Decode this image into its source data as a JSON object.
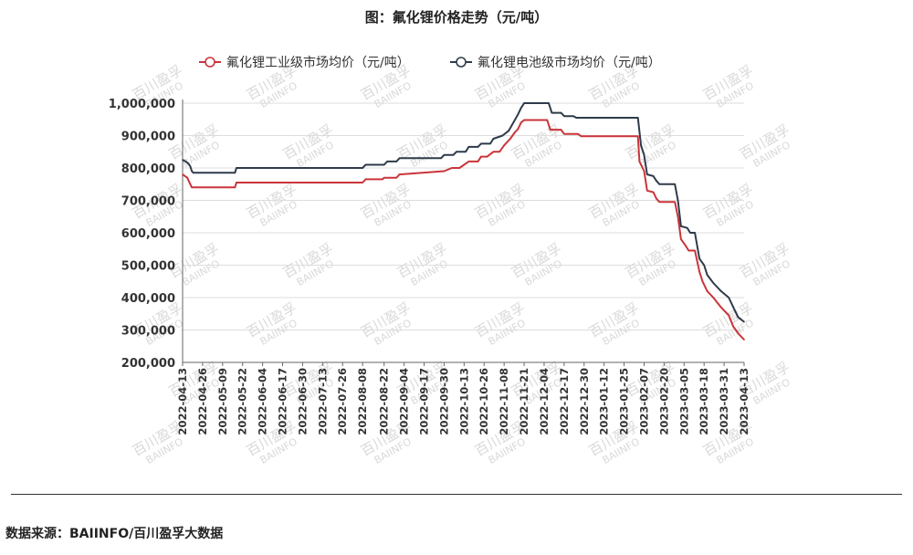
{
  "title": "图：氟化锂价格走势（元/吨）",
  "source": "数据来源：BAIINFO/百川盈孚大数据",
  "watermark": {
    "line1": "百川盈孚",
    "line2": "BAIINFO"
  },
  "colors": {
    "industrial": "#c9353a",
    "battery": "#2f3b4a",
    "axis": "#666666",
    "grid": "#dddddd"
  },
  "chart_data": {
    "type": "line",
    "legend_position": "top",
    "grid": "horizontal",
    "ylim": [
      200000,
      1000000
    ],
    "y_ticks": [
      "200,000",
      "300,000",
      "400,000",
      "500,000",
      "600,000",
      "700,000",
      "800,000",
      "900,000",
      "1,000,000"
    ],
    "y_tick_values": [
      200000,
      300000,
      400000,
      500000,
      600000,
      700000,
      800000,
      900000,
      1000000
    ],
    "x_tick_labels": [
      "2022-04-13",
      "2022-04-26",
      "2022-05-09",
      "2022-05-22",
      "2022-06-04",
      "2022-06-17",
      "2022-06-30",
      "2022-07-13",
      "2022-07-26",
      "2022-08-08",
      "2022-08-22",
      "2022-09-04",
      "2022-09-17",
      "2022-09-30",
      "2022-10-13",
      "2022-10-26",
      "2022-11-08",
      "2022-11-21",
      "2022-12-04",
      "2022-12-17",
      "2022-12-30",
      "2023-01-12",
      "2023-01-25",
      "2023-02-07",
      "2023-02-20",
      "2023-03-05",
      "2023-03-18",
      "2023-03-31",
      "2023-04-13"
    ],
    "series": [
      {
        "name": "氟化锂工业级市场均价（元/吨）",
        "points": [
          [
            "2022-04-13",
            780000
          ],
          [
            "2022-04-16",
            770000
          ],
          [
            "2022-04-18",
            750000
          ],
          [
            "2022-04-19",
            740000
          ],
          [
            "2022-05-17",
            740000
          ],
          [
            "2022-05-18",
            755000
          ],
          [
            "2022-08-08",
            755000
          ],
          [
            "2022-08-10",
            765000
          ],
          [
            "2022-08-21",
            765000
          ],
          [
            "2022-08-22",
            770000
          ],
          [
            "2022-08-30",
            770000
          ],
          [
            "2022-09-01",
            780000
          ],
          [
            "2022-09-30",
            790000
          ],
          [
            "2022-10-05",
            800000
          ],
          [
            "2022-10-10",
            800000
          ],
          [
            "2022-10-13",
            810000
          ],
          [
            "2022-10-16",
            820000
          ],
          [
            "2022-10-22",
            820000
          ],
          [
            "2022-10-24",
            835000
          ],
          [
            "2022-10-28",
            835000
          ],
          [
            "2022-11-01",
            850000
          ],
          [
            "2022-11-05",
            850000
          ],
          [
            "2022-11-08",
            870000
          ],
          [
            "2022-11-12",
            890000
          ],
          [
            "2022-11-15",
            910000
          ],
          [
            "2022-11-17",
            920000
          ],
          [
            "2022-11-19",
            940000
          ],
          [
            "2022-11-21",
            948000
          ],
          [
            "2022-12-06",
            948000
          ],
          [
            "2022-12-08",
            918000
          ],
          [
            "2022-12-15",
            918000
          ],
          [
            "2022-12-17",
            905000
          ],
          [
            "2022-12-26",
            905000
          ],
          [
            "2022-12-28",
            898000
          ],
          [
            "2023-02-03",
            898000
          ],
          [
            "2023-02-04",
            820000
          ],
          [
            "2023-02-07",
            790000
          ],
          [
            "2023-02-09",
            730000
          ],
          [
            "2023-02-13",
            725000
          ],
          [
            "2023-02-15",
            705000
          ],
          [
            "2023-02-17",
            695000
          ],
          [
            "2023-02-27",
            695000
          ],
          [
            "2023-03-01",
            650000
          ],
          [
            "2023-03-03",
            580000
          ],
          [
            "2023-03-06",
            560000
          ],
          [
            "2023-03-08",
            545000
          ],
          [
            "2023-03-12",
            545000
          ],
          [
            "2023-03-15",
            480000
          ],
          [
            "2023-03-17",
            450000
          ],
          [
            "2023-03-20",
            420000
          ],
          [
            "2023-03-24",
            400000
          ],
          [
            "2023-03-29",
            370000
          ],
          [
            "2023-04-03",
            345000
          ],
          [
            "2023-04-06",
            310000
          ],
          [
            "2023-04-10",
            285000
          ],
          [
            "2023-04-13",
            270000
          ]
        ]
      },
      {
        "name": "氟化锂电池级市场均价（元/吨）",
        "points": [
          [
            "2022-04-13",
            825000
          ],
          [
            "2022-04-15",
            820000
          ],
          [
            "2022-04-17",
            812000
          ],
          [
            "2022-04-18",
            805000
          ],
          [
            "2022-04-19",
            790000
          ],
          [
            "2022-04-20",
            785000
          ],
          [
            "2022-05-17",
            785000
          ],
          [
            "2022-05-18",
            800000
          ],
          [
            "2022-08-08",
            800000
          ],
          [
            "2022-08-10",
            810000
          ],
          [
            "2022-08-22",
            810000
          ],
          [
            "2022-08-24",
            820000
          ],
          [
            "2022-08-30",
            820000
          ],
          [
            "2022-09-01",
            830000
          ],
          [
            "2022-09-28",
            830000
          ],
          [
            "2022-09-30",
            840000
          ],
          [
            "2022-10-06",
            840000
          ],
          [
            "2022-10-08",
            850000
          ],
          [
            "2022-10-14",
            850000
          ],
          [
            "2022-10-16",
            865000
          ],
          [
            "2022-10-22",
            865000
          ],
          [
            "2022-10-24",
            875000
          ],
          [
            "2022-10-30",
            875000
          ],
          [
            "2022-11-01",
            890000
          ],
          [
            "2022-11-07",
            900000
          ],
          [
            "2022-11-11",
            915000
          ],
          [
            "2022-11-14",
            940000
          ],
          [
            "2022-11-17",
            965000
          ],
          [
            "2022-11-19",
            985000
          ],
          [
            "2022-11-21",
            1000000
          ],
          [
            "2022-12-07",
            1000000
          ],
          [
            "2022-12-09",
            970000
          ],
          [
            "2022-12-15",
            970000
          ],
          [
            "2022-12-17",
            960000
          ],
          [
            "2022-12-23",
            960000
          ],
          [
            "2022-12-25",
            955000
          ],
          [
            "2023-02-03",
            955000
          ],
          [
            "2023-02-05",
            870000
          ],
          [
            "2023-02-07",
            840000
          ],
          [
            "2023-02-09",
            780000
          ],
          [
            "2023-02-13",
            775000
          ],
          [
            "2023-02-15",
            760000
          ],
          [
            "2023-02-17",
            750000
          ],
          [
            "2023-02-27",
            750000
          ],
          [
            "2023-03-01",
            700000
          ],
          [
            "2023-03-03",
            620000
          ],
          [
            "2023-03-07",
            615000
          ],
          [
            "2023-03-09",
            600000
          ],
          [
            "2023-03-12",
            600000
          ],
          [
            "2023-03-15",
            520000
          ],
          [
            "2023-03-18",
            500000
          ],
          [
            "2023-03-20",
            470000
          ],
          [
            "2023-03-24",
            445000
          ],
          [
            "2023-03-29",
            420000
          ],
          [
            "2023-04-03",
            400000
          ],
          [
            "2023-04-06",
            370000
          ],
          [
            "2023-04-09",
            340000
          ],
          [
            "2023-04-13",
            325000
          ]
        ]
      }
    ]
  }
}
